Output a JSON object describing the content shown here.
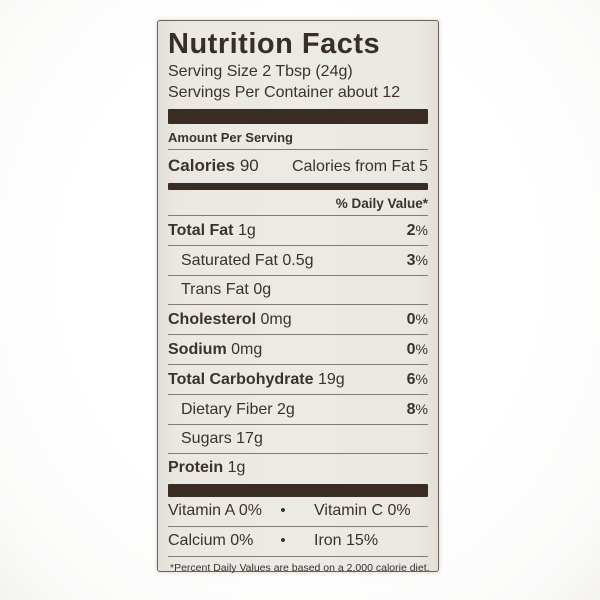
{
  "label": {
    "title": "Nutrition Facts",
    "serving_size": "Serving Size 2 Tbsp (24g)",
    "servings_per_container": "Servings Per Container about 12",
    "amount_per_serving": "Amount Per Serving",
    "calories_label": "Calories",
    "calories_value": "90",
    "calories_from_fat": "Calories from Fat 5",
    "daily_value_header": "% Daily Value*",
    "nutrients": [
      {
        "name": "Total Fat",
        "amount": "1g",
        "dv": "2",
        "pct": "%"
      },
      {
        "name": "Saturated Fat",
        "amount": "0.5g",
        "dv": "3",
        "pct": "%"
      },
      {
        "name": "Trans Fat",
        "amount": "0g",
        "dv": "",
        "pct": ""
      },
      {
        "name": "Cholesterol",
        "amount": "0mg",
        "dv": "0",
        "pct": "%"
      },
      {
        "name": "Sodium",
        "amount": "0mg",
        "dv": "0",
        "pct": "%"
      },
      {
        "name": "Total Carbohydrate",
        "amount": "19g",
        "dv": "6",
        "pct": "%"
      },
      {
        "name": "Dietary Fiber",
        "amount": "2g",
        "dv": "8",
        "pct": "%"
      },
      {
        "name": "Sugars",
        "amount": "17g",
        "dv": "",
        "pct": ""
      },
      {
        "name": "Protein",
        "amount": "1g",
        "dv": "",
        "pct": ""
      }
    ],
    "bullet": "•",
    "vitamins": [
      {
        "left": "Vitamin A 0%",
        "right": "Vitamin C 0%"
      },
      {
        "left": "Calcium 0%",
        "right": "Iron 15%"
      }
    ],
    "footnote": "*Percent Daily Values are based on a 2,000 calorie diet.",
    "colors": {
      "label_background": "#ebe8e3",
      "text": "#3a322b",
      "bar": "#3a2c22",
      "divider": "#847c6f",
      "border": "#6b6355"
    }
  }
}
